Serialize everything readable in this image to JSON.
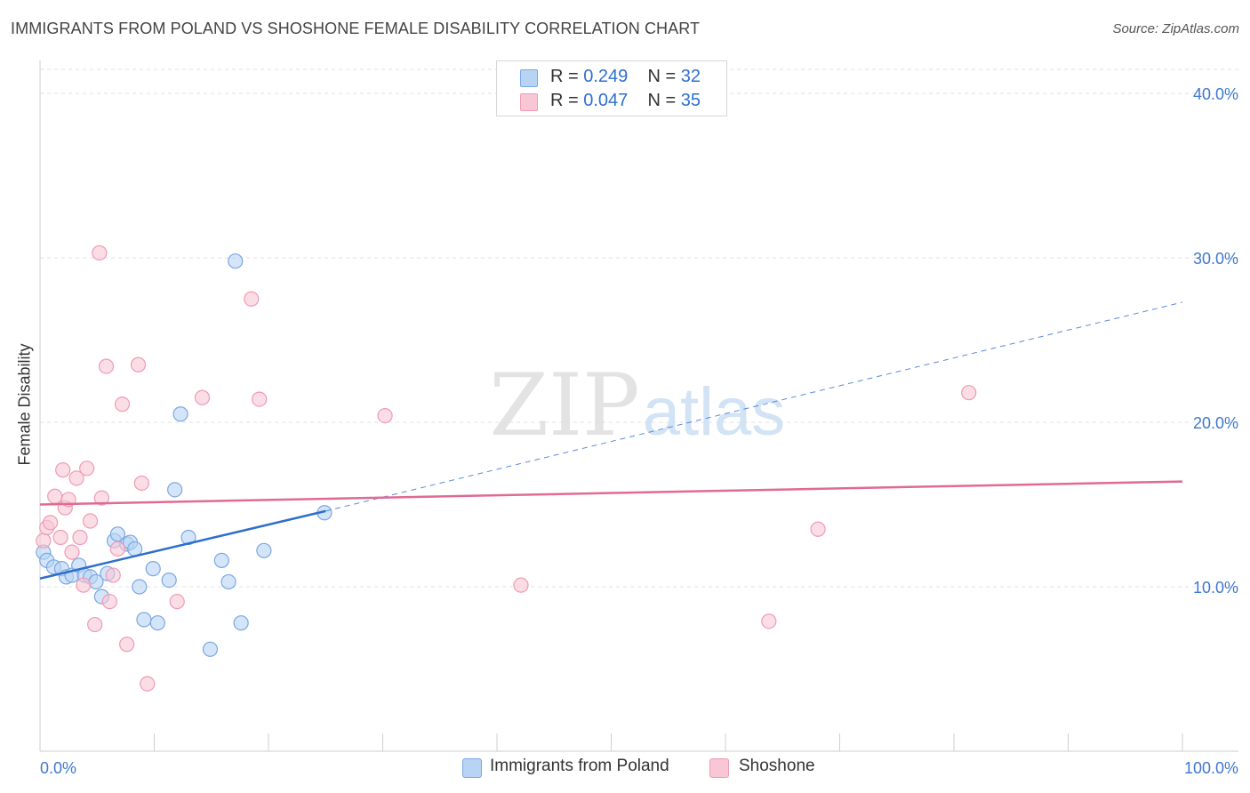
{
  "title": "IMMIGRANTS FROM POLAND VS SHOSHONE FEMALE DISABILITY CORRELATION CHART",
  "source": "Source: ZipAtlas.com",
  "watermark": {
    "zip": "ZIP",
    "atlas": "atlas"
  },
  "legend": {
    "rows": [
      {
        "r_label": "R = ",
        "r_value": "0.249",
        "n_label": "N = ",
        "n_value": "32"
      },
      {
        "r_label": "R = ",
        "r_value": "0.047",
        "n_label": "N = ",
        "n_value": "35"
      }
    ]
  },
  "colors": {
    "poland_fill": "#b8d4f5",
    "poland_stroke": "#7aa8e0",
    "poland_line": "#2f6fcc",
    "shoshone_fill": "#f9c6d6",
    "shoshone_stroke": "#ef9bb5",
    "shoshone_line": "#e06a93",
    "tick_label": "#3e78d0",
    "grid": "#e2e2e2"
  },
  "chart_data": {
    "type": "scatter",
    "title": "IMMIGRANTS FROM POLAND VS SHOSHONE FEMALE DISABILITY CORRELATION CHART",
    "xlabel": "",
    "ylabel": "Female Disability",
    "xlim": [
      0,
      100
    ],
    "ylim": [
      0,
      42
    ],
    "x_tick_labels": [
      "0.0%",
      "100.0%"
    ],
    "y_ticks": [
      10,
      20,
      30,
      40
    ],
    "y_tick_labels": [
      "10.0%",
      "20.0%",
      "30.0%",
      "40.0%"
    ],
    "grid": true,
    "legend_position": "top-center",
    "series": [
      {
        "name": "Immigrants from Poland",
        "points": [
          [
            0.3,
            12.1
          ],
          [
            0.6,
            11.6
          ],
          [
            1.2,
            11.2
          ],
          [
            1.9,
            11.1
          ],
          [
            2.3,
            10.6
          ],
          [
            2.8,
            10.7
          ],
          [
            3.4,
            11.3
          ],
          [
            3.9,
            10.7
          ],
          [
            4.4,
            10.6
          ],
          [
            4.9,
            10.3
          ],
          [
            5.4,
            9.4
          ],
          [
            5.9,
            10.8
          ],
          [
            6.5,
            12.8
          ],
          [
            6.8,
            13.2
          ],
          [
            7.6,
            12.6
          ],
          [
            7.9,
            12.7
          ],
          [
            8.3,
            12.3
          ],
          [
            8.7,
            10.0
          ],
          [
            9.1,
            8.0
          ],
          [
            9.9,
            11.1
          ],
          [
            10.3,
            7.8
          ],
          [
            11.3,
            10.4
          ],
          [
            11.8,
            15.9
          ],
          [
            12.3,
            20.5
          ],
          [
            13.0,
            13.0
          ],
          [
            14.9,
            6.2
          ],
          [
            15.9,
            11.6
          ],
          [
            16.5,
            10.3
          ],
          [
            17.1,
            29.8
          ],
          [
            17.6,
            7.8
          ],
          [
            19.6,
            12.2
          ],
          [
            24.9,
            14.5
          ]
        ],
        "trend": {
          "x": [
            0,
            25
          ],
          "y": [
            10.5,
            14.6
          ],
          "extended": {
            "x": [
              25,
              100
            ],
            "y": [
              14.6,
              27.3
            ]
          }
        }
      },
      {
        "name": "Shoshone",
        "points": [
          [
            0.3,
            12.8
          ],
          [
            0.6,
            13.6
          ],
          [
            0.9,
            13.9
          ],
          [
            1.3,
            15.5
          ],
          [
            1.8,
            13.0
          ],
          [
            2.0,
            17.1
          ],
          [
            2.2,
            14.8
          ],
          [
            2.5,
            15.3
          ],
          [
            2.8,
            12.1
          ],
          [
            3.2,
            16.6
          ],
          [
            3.5,
            13.0
          ],
          [
            3.8,
            10.1
          ],
          [
            4.1,
            17.2
          ],
          [
            4.4,
            14.0
          ],
          [
            4.8,
            7.7
          ],
          [
            5.2,
            30.3
          ],
          [
            5.4,
            15.4
          ],
          [
            5.8,
            23.4
          ],
          [
            6.1,
            9.1
          ],
          [
            6.4,
            10.7
          ],
          [
            6.8,
            12.3
          ],
          [
            7.2,
            21.1
          ],
          [
            7.6,
            6.5
          ],
          [
            8.6,
            23.5
          ],
          [
            8.9,
            16.3
          ],
          [
            9.4,
            4.1
          ],
          [
            12.0,
            9.1
          ],
          [
            14.2,
            21.5
          ],
          [
            18.5,
            27.5
          ],
          [
            19.2,
            21.4
          ],
          [
            30.2,
            20.4
          ],
          [
            42.1,
            10.1
          ],
          [
            63.8,
            7.9
          ],
          [
            68.1,
            13.5
          ],
          [
            81.3,
            21.8
          ]
        ],
        "trend": {
          "x": [
            0,
            100
          ],
          "y": [
            15.0,
            16.4
          ]
        }
      }
    ]
  }
}
